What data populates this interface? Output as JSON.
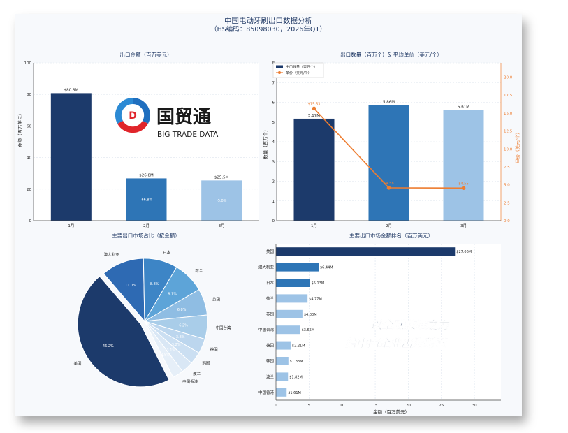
{
  "header": {
    "title": "中国电动牙刷出口数据分析",
    "subtitle": "（HS编码：85098030，2026年Q1）"
  },
  "logo": {
    "cn": "国贸通",
    "en": "BIG TRADE DATA"
  },
  "slogan": {
    "line1": "以全球数据之力",
    "line2": "给中国企业出海新蓝"
  },
  "colors": {
    "dark_navy": "#1c3a6b",
    "mid_blue": "#2e75b6",
    "light_blue": "#9dc3e6",
    "orange": "#ed7d31",
    "grid": "#dde4ee"
  },
  "chart_data": [
    {
      "type": "bar",
      "title": "出口金额（百万美元）",
      "ylabel": "金额（百万美元）",
      "categories": [
        "1月",
        "2月",
        "3月"
      ],
      "values": [
        80.8,
        26.8,
        25.5
      ],
      "value_labels": [
        "$80.8M",
        "$26.8M",
        "$25.5M"
      ],
      "change_labels": [
        "",
        "-66.8%",
        "-5.0%"
      ],
      "ylim": [
        0,
        100
      ],
      "yticks": [
        0,
        20,
        40,
        60,
        80,
        100
      ],
      "grid": true
    },
    {
      "type": "bar",
      "title": "出口数量（百万个）& 平均单价（美元/个）",
      "ylabel": "数量（百万个）",
      "y2label": "单价（美元/个）",
      "categories": [
        "1月",
        "2月",
        "3月"
      ],
      "series": [
        {
          "name": "出口数量（百万个）",
          "type": "bar",
          "values": [
            5.17,
            5.86,
            5.61
          ],
          "value_labels": [
            "5.17M",
            "5.86M",
            "5.61M"
          ]
        },
        {
          "name": "单价（美元/个）",
          "type": "line",
          "axis": "right",
          "values": [
            15.63,
            4.58,
            4.55
          ],
          "value_labels": [
            "$15.63",
            "$4.58",
            "$4.55"
          ]
        }
      ],
      "ylim": [
        0,
        8
      ],
      "yticks": [
        0,
        1,
        2,
        3,
        4,
        5,
        6,
        7,
        8
      ],
      "y2lim": [
        0,
        22
      ],
      "y2ticks": [
        "0.0",
        "2.5",
        "5.0",
        "7.5",
        "10.0",
        "12.5",
        "15.0",
        "17.5",
        "20.0"
      ],
      "legend": "top-left",
      "grid": true
    },
    {
      "type": "pie",
      "title": "主要出口市场占比（按金额）",
      "labels": [
        "美国",
        "澳大利亚",
        "日本",
        "荷兰",
        "英国",
        "中国台湾",
        "德国",
        "韩国",
        "波兰",
        "中国香港"
      ],
      "values": [
        46.2,
        11.0,
        8.8,
        8.1,
        6.8,
        6.2,
        3.8,
        3.2,
        3.1,
        2.8
      ],
      "pct_labels": [
        "46.2%",
        "11.0%",
        "8.8%",
        "8.1%",
        "6.8%",
        "6.2%",
        "3.8%",
        "3.2%",
        "3.1%",
        "2.8%"
      ]
    },
    {
      "type": "bar",
      "orientation": "horizontal",
      "title": "主要出口市场金额排名（百万美元）",
      "xlabel": "金额（百万美元）",
      "categories": [
        "美国",
        "澳大利亚",
        "日本",
        "荷兰",
        "英国",
        "中国台湾",
        "德国",
        "韩国",
        "波兰",
        "中国香港"
      ],
      "values": [
        27.06,
        6.44,
        5.13,
        4.77,
        4.0,
        3.65,
        2.21,
        1.88,
        1.82,
        1.61
      ],
      "value_labels": [
        "$27.06M",
        "$6.44M",
        "$5.13M",
        "$4.77M",
        "$4.00M",
        "$3.65M",
        "$2.21M",
        "$1.88M",
        "$1.82M",
        "$1.61M"
      ],
      "xlim": [
        0,
        34
      ],
      "xticks": [
        0,
        5,
        10,
        15,
        20,
        25,
        30
      ],
      "grid": true
    }
  ]
}
